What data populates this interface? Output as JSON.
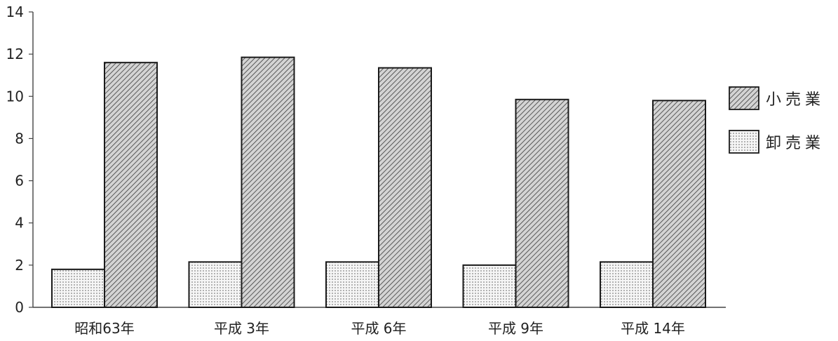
{
  "chart_data": {
    "type": "bar",
    "categories": [
      "昭和63年",
      "平成 3年",
      "平成 6年",
      "平成 9年",
      "平成 14年"
    ],
    "series": [
      {
        "name": "卸売業",
        "values": [
          1.8,
          2.15,
          2.15,
          2.0,
          2.15
        ],
        "pattern": "dots"
      },
      {
        "name": "小売業",
        "values": [
          11.6,
          11.85,
          11.35,
          9.85,
          9.8
        ],
        "pattern": "hatch"
      }
    ],
    "yticks": [
      0,
      2,
      4,
      6,
      8,
      10,
      12,
      14
    ],
    "ylim": [
      0,
      14
    ],
    "xlabel": "",
    "ylabel": "",
    "title": "",
    "grid": false,
    "legend": {
      "position": "right",
      "items": [
        {
          "label": "小売業",
          "pattern": "hatch"
        },
        {
          "label": "卸売業",
          "pattern": "dots"
        }
      ]
    },
    "colors": {
      "bar_stroke": "#1a1a1a",
      "axis": "#444444",
      "fill": "#ffffff"
    }
  }
}
